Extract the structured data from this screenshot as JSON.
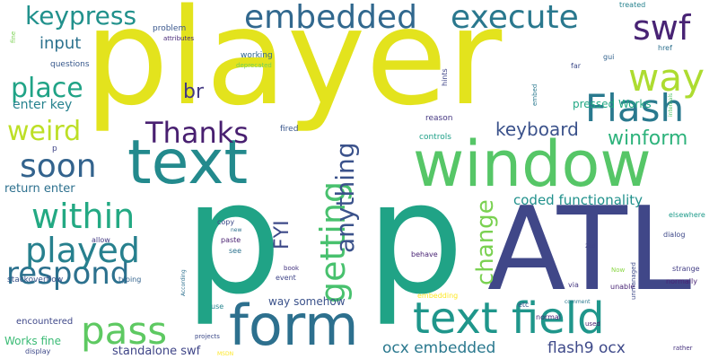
{
  "words": [
    {
      "text": "player",
      "color": "#e3e31d"
    },
    {
      "text": "p",
      "color": "#20a386"
    },
    {
      "text": "p",
      "color": "#20a386"
    },
    {
      "text": "ATL",
      "color": "#404788"
    },
    {
      "text": "window",
      "color": "#56c667"
    },
    {
      "text": "text",
      "color": "#238a8d"
    },
    {
      "text": "form",
      "color": "#2d708e"
    },
    {
      "text": "text field",
      "color": "#1f968b"
    },
    {
      "text": "pass",
      "color": "#5ec962"
    },
    {
      "text": "respond",
      "color": "#2c718e"
    },
    {
      "text": "played",
      "color": "#27808e"
    },
    {
      "text": "within",
      "color": "#23a983"
    },
    {
      "text": "getting",
      "color": "#48c16e"
    },
    {
      "text": "Flash",
      "color": "#29798e"
    },
    {
      "text": "soon",
      "color": "#33638d"
    },
    {
      "text": "way",
      "color": "#addc30"
    },
    {
      "text": "swf",
      "color": "#482374"
    },
    {
      "text": "execute",
      "color": "#2a788e"
    },
    {
      "text": "embedded",
      "color": "#31688e"
    },
    {
      "text": "keypress",
      "color": "#21918c"
    },
    {
      "text": "Thanks",
      "color": "#481f70"
    },
    {
      "text": "anything",
      "color": "#3b528b"
    },
    {
      "text": "change",
      "color": "#7ad151"
    },
    {
      "text": "place",
      "color": "#20a386"
    },
    {
      "text": "weird",
      "color": "#bddf26"
    },
    {
      "text": "FYI",
      "color": "#3e4a89"
    },
    {
      "text": "winform",
      "color": "#2eb37c"
    },
    {
      "text": "keyboard",
      "color": "#3b528b"
    },
    {
      "text": "br",
      "color": "#443983"
    },
    {
      "text": "input",
      "color": "#2c728e"
    },
    {
      "text": "ocx embedded",
      "color": "#2a788e"
    },
    {
      "text": "flash9 ocx",
      "color": "#3e4989"
    },
    {
      "text": "coded functionality",
      "color": "#21918c"
    },
    {
      "text": "return enter",
      "color": "#2d708e"
    },
    {
      "text": "enter key",
      "color": "#26828e"
    },
    {
      "text": "standalone swf",
      "color": "#404688"
    },
    {
      "text": "Works fine",
      "color": "#3bbb75"
    },
    {
      "text": "way somehow",
      "color": "#3b528b"
    },
    {
      "text": "pressed Works",
      "color": "#22a884"
    },
    {
      "text": "encountered",
      "color": "#3f4889"
    },
    {
      "text": "questions",
      "color": "#38598c"
    },
    {
      "text": "working",
      "color": "#31688e"
    },
    {
      "text": "fired",
      "color": "#39568c"
    },
    {
      "text": "reason",
      "color": "#453781"
    },
    {
      "text": "controls",
      "color": "#1fa088"
    },
    {
      "text": "p",
      "color": "#404688"
    },
    {
      "text": "problem",
      "color": "#39568c"
    },
    {
      "text": "attributes",
      "color": "#482878"
    },
    {
      "text": "deprecated",
      "color": "#73d056"
    },
    {
      "text": "treated",
      "color": "#26828e"
    },
    {
      "text": "gui",
      "color": "#33638d"
    },
    {
      "text": "href",
      "color": "#2d708e"
    },
    {
      "text": "hints",
      "color": "#404688"
    },
    {
      "text": "far",
      "color": "#3e4c8a"
    },
    {
      "text": "embed",
      "color": "#2a788e"
    },
    {
      "text": "internals",
      "color": "#54c568"
    },
    {
      "text": "elsewhere",
      "color": "#1e9b8a"
    },
    {
      "text": "dialog",
      "color": "#3e4989"
    },
    {
      "text": "strange",
      "color": "#433e85"
    },
    {
      "text": "normally",
      "color": "#482475"
    },
    {
      "text": "unable",
      "color": "#482475"
    },
    {
      "text": "via",
      "color": "#453781"
    },
    {
      "text": "Now",
      "color": "#8bd646"
    },
    {
      "text": "unmanaged",
      "color": "#3e4a89"
    },
    {
      "text": "2ed",
      "color": "#414487"
    },
    {
      "text": "behave",
      "color": "#482374"
    },
    {
      "text": "etc",
      "color": "#38598c"
    },
    {
      "text": "normal",
      "color": "#482475"
    },
    {
      "text": "comment",
      "color": "#2a788e"
    },
    {
      "text": "embedding",
      "color": "#fde725"
    },
    {
      "text": "used",
      "color": "#481b6d"
    },
    {
      "text": "rather",
      "color": "#46327e"
    },
    {
      "text": "display",
      "color": "#3e4989"
    },
    {
      "text": "MSDN",
      "color": "#fde725"
    },
    {
      "text": "projects",
      "color": "#3e4c8a"
    },
    {
      "text": "use",
      "color": "#25848e"
    },
    {
      "text": "book",
      "color": "#453581"
    },
    {
      "text": "event",
      "color": "#404688"
    },
    {
      "text": "see",
      "color": "#2c728e"
    },
    {
      "text": "paste",
      "color": "#481f70"
    },
    {
      "text": "copy",
      "color": "#3e4989"
    },
    {
      "text": "new",
      "color": "#2d708e"
    },
    {
      "text": "allow",
      "color": "#443983"
    },
    {
      "text": "stackoverflow",
      "color": "#3a548c"
    },
    {
      "text": "typing",
      "color": "#33638d"
    },
    {
      "text": "According",
      "color": "#2d708e"
    },
    {
      "text": "fine",
      "color": "#7ad151"
    }
  ]
}
